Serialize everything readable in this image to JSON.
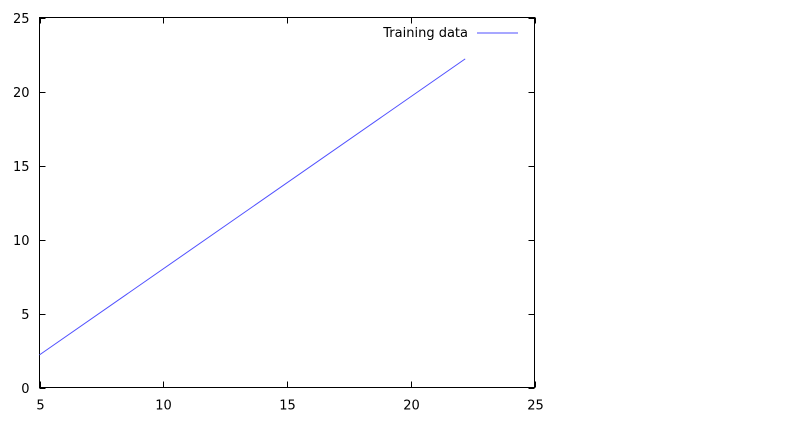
{
  "chart_data": {
    "type": "line",
    "title": "",
    "xlabel": "",
    "ylabel": "",
    "xlim": [
      5,
      25
    ],
    "ylim": [
      0,
      25
    ],
    "x_ticks": [
      5,
      10,
      15,
      20,
      25
    ],
    "y_ticks": [
      0,
      5,
      10,
      15,
      20,
      25
    ],
    "x_tick_labels": [
      "5",
      "10",
      "15",
      "20",
      "25"
    ],
    "y_tick_labels": [
      "0",
      "5",
      "10",
      "15",
      "20",
      "25"
    ],
    "grid": false,
    "legend_position": "top-right",
    "series": [
      {
        "name": "Training data",
        "color": "#4f4fff",
        "x": [
          5,
          22.2
        ],
        "y": [
          2.2,
          22.2
        ]
      }
    ]
  }
}
